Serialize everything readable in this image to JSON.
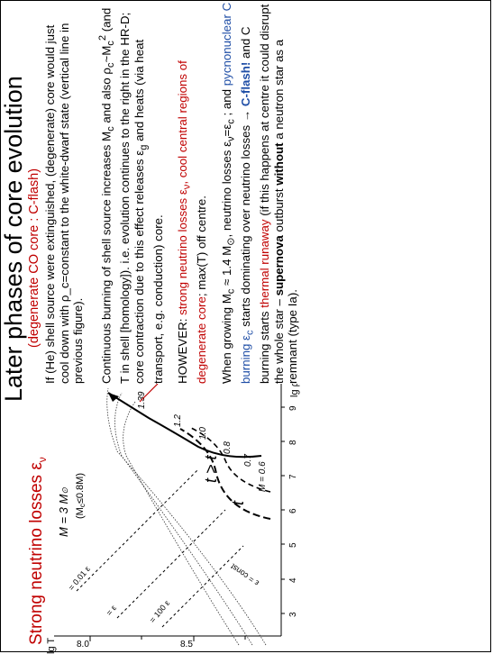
{
  "slide": {
    "title": "Later phases of core evolution",
    "subtitle_prefix": "(degenerate ",
    "subtitle_core": "CO core : C-flash",
    "subtitle_suffix": ")",
    "neutrino_title": "Strong neutrino losses ε",
    "neutrino_sub": "ν"
  },
  "diagram": {
    "y_axis_label": "lg T",
    "x_axis_label": "lg ρ",
    "x_ticks": [
      "3",
      "4",
      "5",
      "6",
      "7",
      "8",
      "9"
    ],
    "y_ticks": [
      "8.0",
      "8.5"
    ],
    "mass_label": "M = 3 M",
    "mass_sun": "⊙",
    "mc_limit": "(M",
    "mc_limit_sub": "c",
    "mc_limit_rest": "≤0.8M",
    "mc_limit_end": ")",
    "eps_lines": [
      "= 0.01 ε",
      "= ε",
      "= 100 ε"
    ],
    "eps_const": "ε = const",
    "time_labels": [
      "t",
      "t > t"
    ],
    "mc_track_labels": [
      "M = 0.6",
      "0.7",
      "0.8",
      "1.0",
      "1.2",
      "1.39"
    ]
  },
  "text": {
    "p1": "If (He) shell source were extinguished, (degenerate) core would just cool down with ρ_c=constant to the white-dwarf state (vertical line in previous figure).",
    "p2_a": "Continuous burning of shell source increases M",
    "p2_b": "and also ρ",
    "p2_c": "~M",
    "p2_d": " (and T in shell [homology]). i.e. evolution continues to the right in the HR-D; core contraction due to this effect releases ε",
    "p2_e": " and heats (via heat transport, e.g. conduction) core.",
    "p3_a": "HOWEVER: ",
    "p3_red": "strong neutrino losses ε",
    "p3_red2": ", cool central regions of degenerate core",
    "p3_b": "; max(T) off centre.",
    "p4_a": "When growing M",
    "p4_b": " ≈ 1.4 M",
    "p4_c": ", neutrino losses ε",
    "p4_d": "=ε",
    "p4_e": " ; and ",
    "p4_blue1": "pycnonuclear C burning ε",
    "p4_f": " starts dominating over neutrino losses → ",
    "p4_flash": "C-flash!",
    "p4_g": " and C burning starts ",
    "p4_red": "thermal runaway",
    "p4_h": " (if this happens at centre it could disrupt the whole star – ",
    "p4_sn": "supernova",
    "p4_i": " outburst ",
    "p4_without": "without",
    "p4_j": " a neutron star as a remnant (type Ia)."
  },
  "colors": {
    "red": "#c00000",
    "blue": "#1f4ea6"
  }
}
